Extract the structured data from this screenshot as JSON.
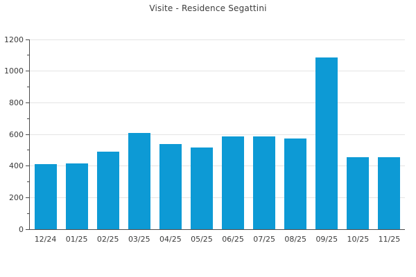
{
  "chart_data": {
    "type": "bar",
    "title": "Visite - Residence Segattini",
    "categories": [
      "12/24",
      "01/25",
      "02/25",
      "03/25",
      "04/25",
      "05/25",
      "06/25",
      "07/25",
      "08/25",
      "09/25",
      "10/25",
      "11/25"
    ],
    "values": [
      410,
      415,
      490,
      610,
      540,
      515,
      585,
      585,
      575,
      1085,
      455,
      455
    ],
    "xlabel": "",
    "ylabel": "",
    "ylim": [
      0,
      1200
    ],
    "ytick_step": 200,
    "yminor_step": 100,
    "ytick_labels": [
      "0",
      "200",
      "400",
      "600",
      "800",
      "1000",
      "1200"
    ],
    "grid": "horizontal-major",
    "legend": "none"
  },
  "colors": {
    "bar": "#0d9ad5",
    "grid": "#e4e4e4",
    "axis": "#4a4a4a",
    "text": "#3a3a3a",
    "background": "#ffffff"
  }
}
